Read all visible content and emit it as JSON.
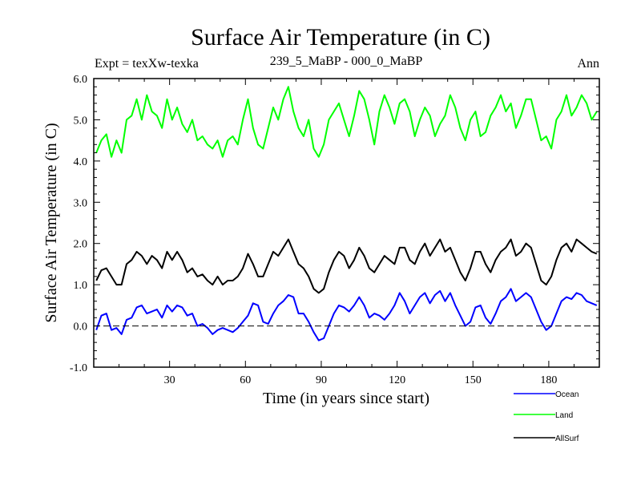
{
  "chart_data": {
    "type": "line",
    "title": "Surface Air Temperature (in C)",
    "subtitle_left": "Expt = texXw-texka",
    "subtitle_center": "239_5_MaBP - 000_0_MaBP",
    "subtitle_right": "Ann",
    "xlabel": "Time (in years since start)",
    "ylabel": "Surface Air Temperature (in C)",
    "xlim": [
      0,
      200
    ],
    "ylim": [
      -1.0,
      6.0
    ],
    "x_ticks": [
      30,
      60,
      90,
      120,
      150,
      180
    ],
    "x_tick_labels": [
      "30",
      "60",
      "90",
      "120",
      "150",
      "180"
    ],
    "y_ticks": [
      -1.0,
      0.0,
      1.0,
      2.0,
      3.0,
      4.0,
      5.0,
      6.0
    ],
    "y_tick_labels": [
      "-1.0",
      "0.0",
      "1.0",
      "2.0",
      "3.0",
      "4.0",
      "5.0",
      "6.0"
    ],
    "reference_line": 0.0,
    "x": [
      1,
      3,
      5,
      7,
      9,
      11,
      13,
      15,
      17,
      19,
      21,
      23,
      25,
      27,
      29,
      31,
      33,
      35,
      37,
      39,
      41,
      43,
      45,
      47,
      49,
      51,
      53,
      55,
      57,
      59,
      61,
      63,
      65,
      67,
      69,
      71,
      73,
      75,
      77,
      79,
      81,
      83,
      85,
      87,
      89,
      91,
      93,
      95,
      97,
      99,
      101,
      103,
      105,
      107,
      109,
      111,
      113,
      115,
      117,
      119,
      121,
      123,
      125,
      127,
      129,
      131,
      133,
      135,
      137,
      139,
      141,
      143,
      145,
      147,
      149,
      151,
      153,
      155,
      157,
      159,
      161,
      163,
      165,
      167,
      169,
      171,
      173,
      175,
      177,
      179,
      181,
      183,
      185,
      187,
      189,
      191,
      193,
      195,
      197,
      199
    ],
    "series": [
      {
        "name": "Ocean",
        "color": "#0000ff",
        "values": [
          -0.1,
          0.25,
          0.3,
          -0.1,
          -0.05,
          -0.2,
          0.15,
          0.2,
          0.45,
          0.5,
          0.3,
          0.35,
          0.4,
          0.2,
          0.5,
          0.35,
          0.5,
          0.45,
          0.25,
          0.3,
          0.0,
          0.05,
          -0.05,
          -0.2,
          -0.1,
          -0.05,
          -0.1,
          -0.15,
          -0.05,
          0.1,
          0.25,
          0.55,
          0.5,
          0.1,
          0.05,
          0.3,
          0.5,
          0.6,
          0.75,
          0.7,
          0.3,
          0.3,
          0.1,
          -0.15,
          -0.35,
          -0.3,
          0.0,
          0.3,
          0.5,
          0.45,
          0.35,
          0.5,
          0.7,
          0.5,
          0.2,
          0.3,
          0.25,
          0.15,
          0.3,
          0.5,
          0.8,
          0.6,
          0.3,
          0.5,
          0.7,
          0.8,
          0.55,
          0.75,
          0.85,
          0.6,
          0.8,
          0.5,
          0.25,
          0.0,
          0.1,
          0.45,
          0.5,
          0.2,
          0.05,
          0.3,
          0.6,
          0.7,
          0.9,
          0.6,
          0.7,
          0.8,
          0.7,
          0.4,
          0.1,
          -0.1,
          0.0,
          0.3,
          0.6,
          0.7,
          0.65,
          0.8,
          0.75,
          0.6,
          0.55,
          0.5
        ]
      },
      {
        "name": "Land",
        "color": "#00ff00",
        "values": [
          4.2,
          4.5,
          4.65,
          4.1,
          4.5,
          4.2,
          5.0,
          5.1,
          5.5,
          5.0,
          5.6,
          5.2,
          5.1,
          4.8,
          5.5,
          5.0,
          5.3,
          4.9,
          4.7,
          5.0,
          4.5,
          4.6,
          4.4,
          4.3,
          4.5,
          4.1,
          4.5,
          4.6,
          4.4,
          5.0,
          5.5,
          4.8,
          4.4,
          4.3,
          4.8,
          5.3,
          5.0,
          5.5,
          5.8,
          5.2,
          4.8,
          4.6,
          5.0,
          4.3,
          4.1,
          4.4,
          5.0,
          5.2,
          5.4,
          5.0,
          4.6,
          5.1,
          5.7,
          5.5,
          5.0,
          4.4,
          5.2,
          5.6,
          5.3,
          4.9,
          5.4,
          5.5,
          5.2,
          4.6,
          5.0,
          5.3,
          5.1,
          4.6,
          4.9,
          5.1,
          5.6,
          5.3,
          4.8,
          4.5,
          5.0,
          5.2,
          4.6,
          4.7,
          5.1,
          5.3,
          5.6,
          5.2,
          5.4,
          4.8,
          5.1,
          5.5,
          5.5,
          5.0,
          4.5,
          4.6,
          4.3,
          5.0,
          5.2,
          5.6,
          5.1,
          5.3,
          5.6,
          5.4,
          5.0,
          5.2
        ]
      },
      {
        "name": "AllSurf",
        "color": "#000000",
        "values": [
          1.1,
          1.35,
          1.4,
          1.2,
          1.0,
          1.0,
          1.5,
          1.6,
          1.8,
          1.7,
          1.5,
          1.7,
          1.6,
          1.4,
          1.8,
          1.6,
          1.8,
          1.6,
          1.3,
          1.4,
          1.2,
          1.25,
          1.1,
          1.0,
          1.2,
          1.0,
          1.1,
          1.1,
          1.2,
          1.4,
          1.75,
          1.5,
          1.2,
          1.2,
          1.5,
          1.8,
          1.7,
          1.9,
          2.1,
          1.8,
          1.5,
          1.4,
          1.2,
          0.9,
          0.8,
          0.9,
          1.3,
          1.6,
          1.8,
          1.7,
          1.4,
          1.6,
          1.9,
          1.7,
          1.4,
          1.3,
          1.5,
          1.7,
          1.6,
          1.5,
          1.9,
          1.9,
          1.6,
          1.5,
          1.8,
          2.0,
          1.7,
          1.9,
          2.1,
          1.8,
          1.9,
          1.6,
          1.3,
          1.1,
          1.4,
          1.8,
          1.8,
          1.5,
          1.3,
          1.6,
          1.8,
          1.9,
          2.1,
          1.7,
          1.8,
          2.0,
          1.9,
          1.5,
          1.1,
          1.0,
          1.2,
          1.6,
          1.9,
          2.0,
          1.8,
          2.1,
          2.0,
          1.9,
          1.8,
          1.75
        ]
      }
    ],
    "legend": [
      {
        "name": "Ocean",
        "color": "#0000ff"
      },
      {
        "name": "Land",
        "color": "#00ff00"
      },
      {
        "name": "AllSurf",
        "color": "#000000"
      }
    ],
    "legend_position": "bottom-right"
  }
}
